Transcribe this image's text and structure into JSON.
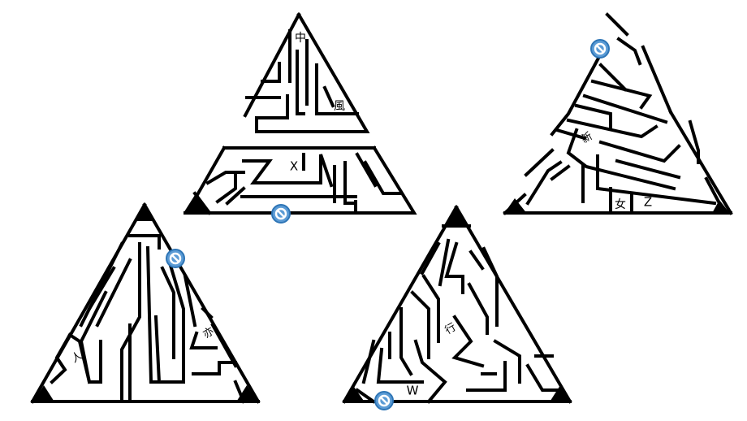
{
  "mazes": [
    {
      "id": "top",
      "labels": [
        "中",
        "風",
        "X"
      ]
    },
    {
      "id": "right",
      "labels": [
        "新",
        "女",
        "Z"
      ]
    },
    {
      "id": "bottom-left",
      "labels": [
        "人",
        "亦"
      ]
    },
    {
      "id": "bottom-right",
      "labels": [
        "W",
        "行"
      ]
    }
  ],
  "icons": {
    "start_marker": "no-entry-icon"
  },
  "colors": {
    "marker_fill": "#5b9bd5",
    "marker_stroke": "#2e75b6",
    "wall": "#000000"
  }
}
